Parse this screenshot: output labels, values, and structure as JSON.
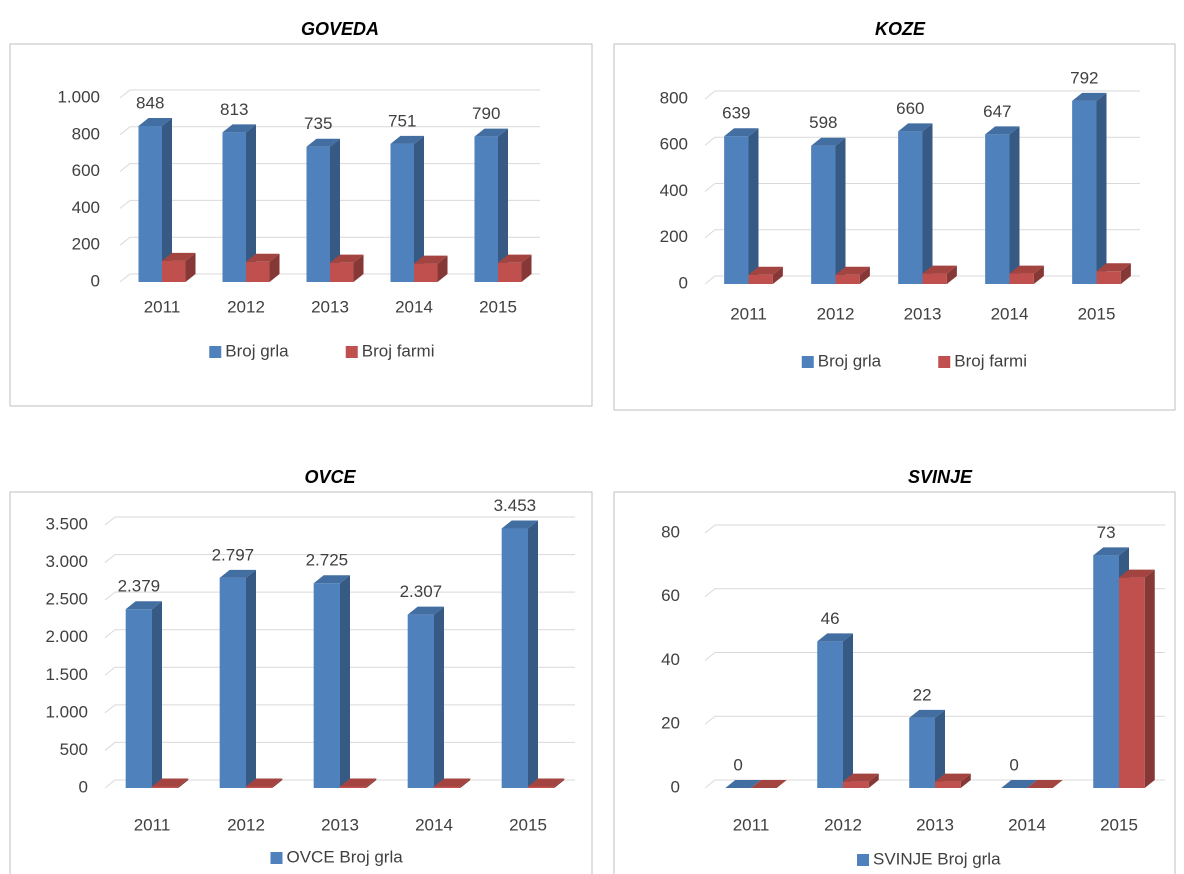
{
  "chart_data": [
    {
      "type": "bar3d",
      "title": "GOVEDA",
      "categories": [
        "2011",
        "2012",
        "2013",
        "2014",
        "2015"
      ],
      "series": [
        {
          "name": "Broj grla",
          "color": "#4f81bd",
          "values": [
            848,
            813,
            735,
            751,
            790
          ]
        },
        {
          "name": "Broj farmi",
          "color": "#c0504d",
          "values": [
            115,
            110,
            105,
            100,
            105
          ]
        }
      ],
      "ylim": [
        0,
        1000
      ],
      "yticks": [
        0,
        200,
        400,
        600,
        800,
        {
          "value": 1000,
          "label": "1.000"
        }
      ],
      "grid": true
    },
    {
      "type": "bar3d",
      "title": "KOZE",
      "categories": [
        "2011",
        "2012",
        "2013",
        "2014",
        "2015"
      ],
      "series": [
        {
          "name": "Broj grla",
          "color": "#4f81bd",
          "values": [
            639,
            598,
            660,
            647,
            792
          ]
        },
        {
          "name": "Broj farmi",
          "color": "#c0504d",
          "values": [
            40,
            40,
            45,
            45,
            55
          ]
        }
      ],
      "ylim": [
        0,
        800
      ],
      "yticks": [
        0,
        200,
        400,
        600,
        800
      ],
      "grid": true
    },
    {
      "type": "bar3d",
      "title": "OVCE",
      "categories": [
        "2011",
        "2012",
        "2013",
        "2014",
        "2015"
      ],
      "series": [
        {
          "name": "OVCE Broj grla",
          "color": "#4f81bd",
          "values": [
            2379,
            2797,
            2725,
            2307,
            3453
          ],
          "value_labels": [
            "2.379",
            "2.797",
            "2.725",
            "2.307",
            "3.453"
          ]
        },
        {
          "color": "#c0504d",
          "values": [
            20,
            20,
            20,
            20,
            20
          ]
        }
      ],
      "ylim": [
        0,
        3500
      ],
      "yticks": [
        0,
        500,
        {
          "value": 1000,
          "label": "1.000"
        },
        {
          "value": 1500,
          "label": "1.500"
        },
        {
          "value": 2000,
          "label": "2.000"
        },
        {
          "value": 2500,
          "label": "2.500"
        },
        {
          "value": 3000,
          "label": "3.000"
        },
        {
          "value": 3500,
          "label": "3.500"
        }
      ],
      "grid": true
    },
    {
      "type": "bar3d",
      "title": "SVINJE",
      "categories": [
        "2011",
        "2012",
        "2013",
        "2014",
        "2015"
      ],
      "series": [
        {
          "name": "SVINJE Broj grla",
          "color": "#4f81bd",
          "values": [
            0,
            46,
            22,
            0,
            73
          ]
        },
        {
          "color": "#c0504d",
          "values": [
            0,
            2,
            2,
            0,
            66
          ]
        }
      ],
      "ylim": [
        0,
        80
      ],
      "yticks": [
        0,
        20,
        40,
        60,
        80
      ],
      "grid": true
    }
  ]
}
